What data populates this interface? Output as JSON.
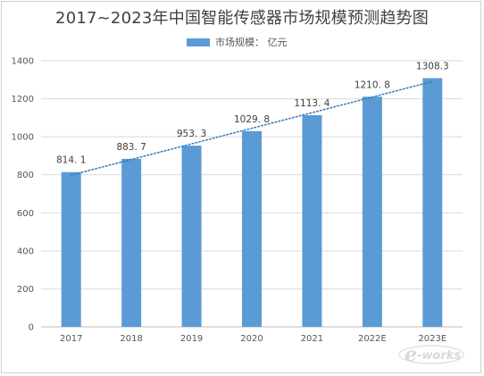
{
  "chart_data": {
    "type": "bar",
    "title": "2017~2023年中国智能传感器市场规模预测趋势图",
    "categories": [
      "2017",
      "2018",
      "2019",
      "2020",
      "2021",
      "2022E",
      "2023E"
    ],
    "series": [
      {
        "name": "市场规模： 亿元",
        "values": [
          814.1,
          883.7,
          953.3,
          1029.8,
          1113.4,
          1210.8,
          1308.3
        ]
      }
    ],
    "data_labels": [
      "814. 1",
      "883. 7",
      "953. 3",
      "1029. 8",
      "1113. 4",
      "1210. 8",
      "1308.3"
    ],
    "y_ticks": [
      0,
      200,
      400,
      600,
      800,
      1000,
      1200,
      1400
    ],
    "ylim": [
      0,
      1400
    ],
    "xlabel": "",
    "ylabel": "",
    "grid": true,
    "legend_position": "top",
    "trendline": {
      "type": "linear",
      "style": "dotted"
    },
    "colors": {
      "bar": "#5b9bd5",
      "trendline": "#3a7dbf",
      "grid": "#d9d9d9",
      "axis": "#bfbfbf"
    }
  },
  "watermark": {
    "brand": "e-works"
  }
}
